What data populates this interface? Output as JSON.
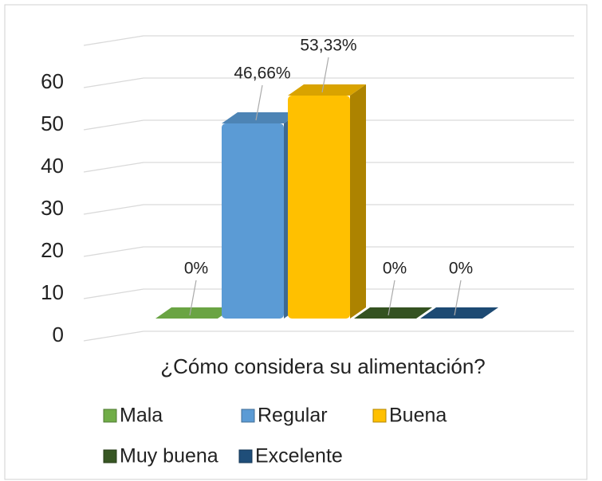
{
  "chart_data": {
    "type": "bar3d",
    "x_label": "¿Cómo considera su alimentación?",
    "series": [
      {
        "name": "Mala",
        "color": "#70ad47",
        "values": [
          0
        ],
        "value_labels": [
          "0%"
        ]
      },
      {
        "name": "Regular",
        "color": "#5b9bd5",
        "values": [
          46.66
        ],
        "value_labels": [
          "46,66%"
        ]
      },
      {
        "name": "Buena",
        "color": "#ffc000",
        "values": [
          53.33
        ],
        "value_labels": [
          "53,33%"
        ]
      },
      {
        "name": "Muy buena",
        "color": "#375623",
        "values": [
          0
        ],
        "value_labels": [
          "0%"
        ]
      },
      {
        "name": "Excelente",
        "color": "#1f4e79",
        "values": [
          0
        ],
        "value_labels": [
          "0%"
        ]
      }
    ],
    "ylim": [
      0,
      70
    ],
    "yticks": [
      0,
      10,
      20,
      30,
      40,
      50,
      60
    ],
    "grid": true
  }
}
